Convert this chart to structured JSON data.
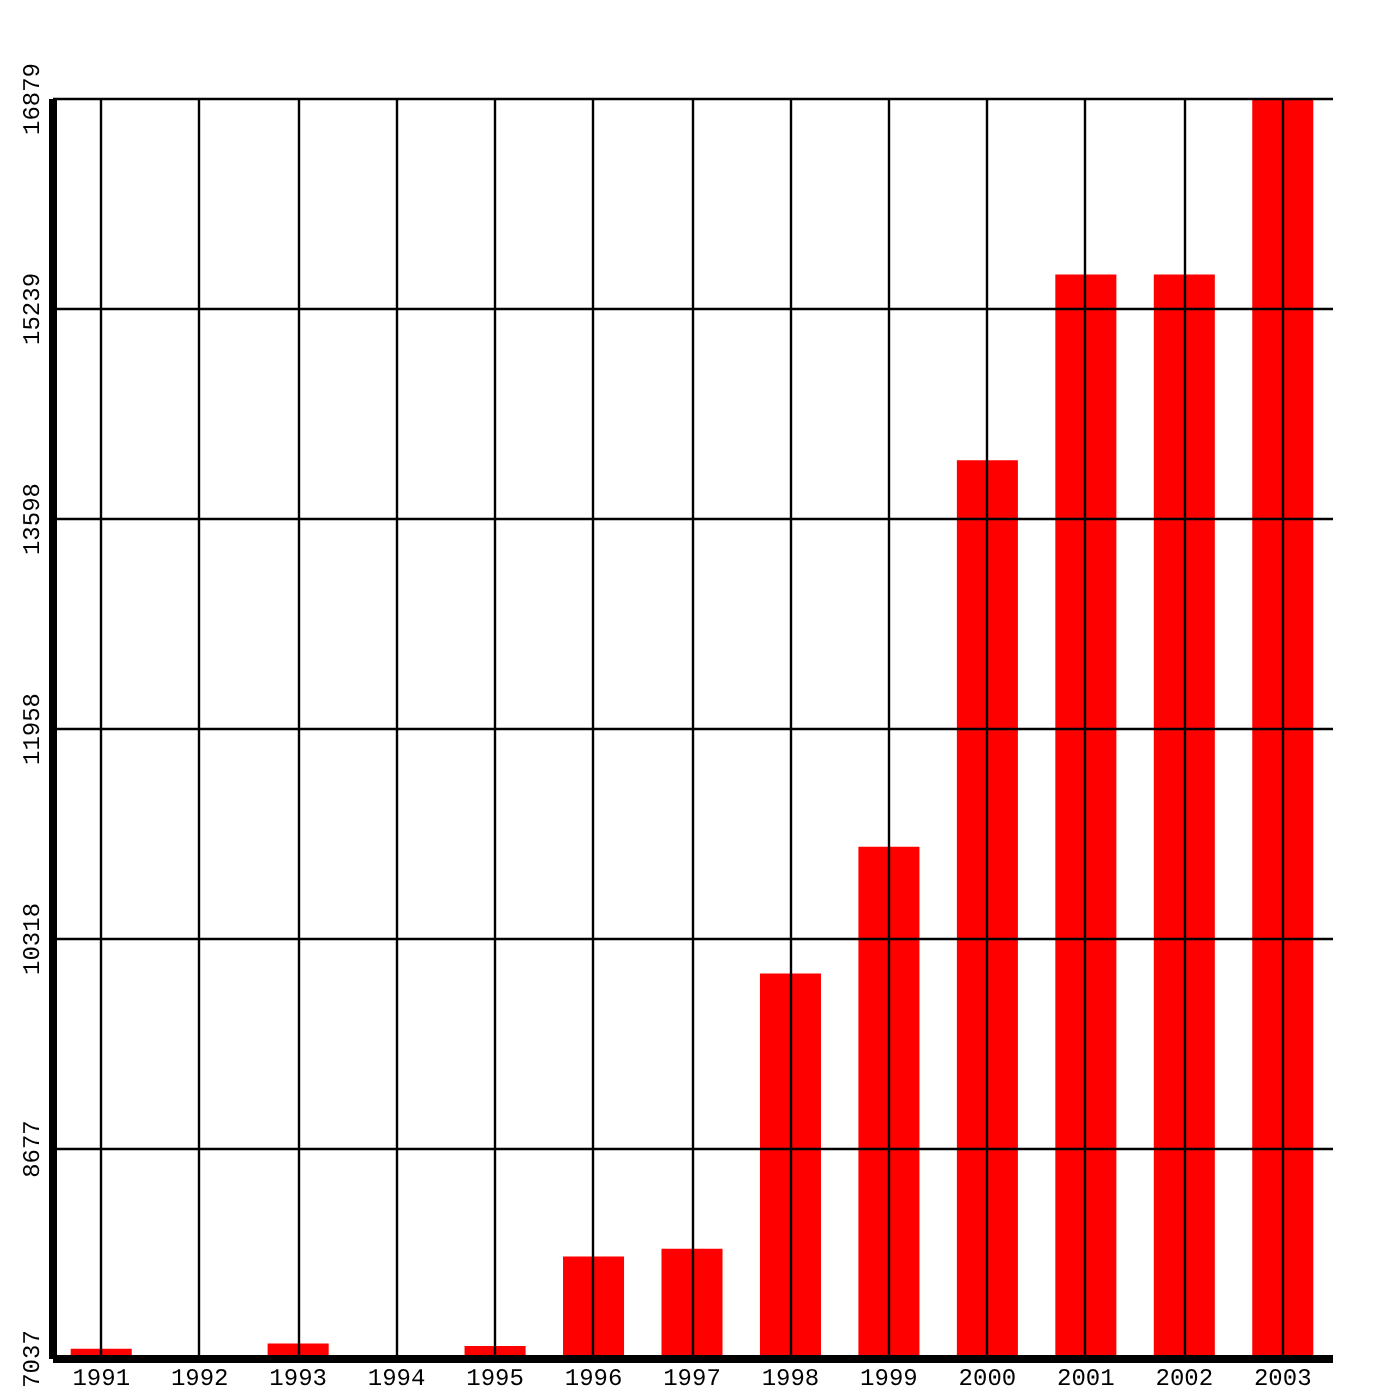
{
  "chart_data": {
    "type": "bar",
    "categories": [
      "1991",
      "1992",
      "1993",
      "1994",
      "1995",
      "1996",
      "1997",
      "1998",
      "1999",
      "2000",
      "2001",
      "2002",
      "2003"
    ],
    "values": [
      7110,
      null,
      7150,
      null,
      7130,
      7830,
      7890,
      10040,
      11030,
      14050,
      15500,
      15500,
      16879
    ],
    "color": "#ff0000",
    "ylim": [
      7037,
      16879
    ],
    "yticks": [
      7037,
      8677,
      10318,
      11958,
      13598,
      15239,
      16879
    ],
    "grid": true
  }
}
